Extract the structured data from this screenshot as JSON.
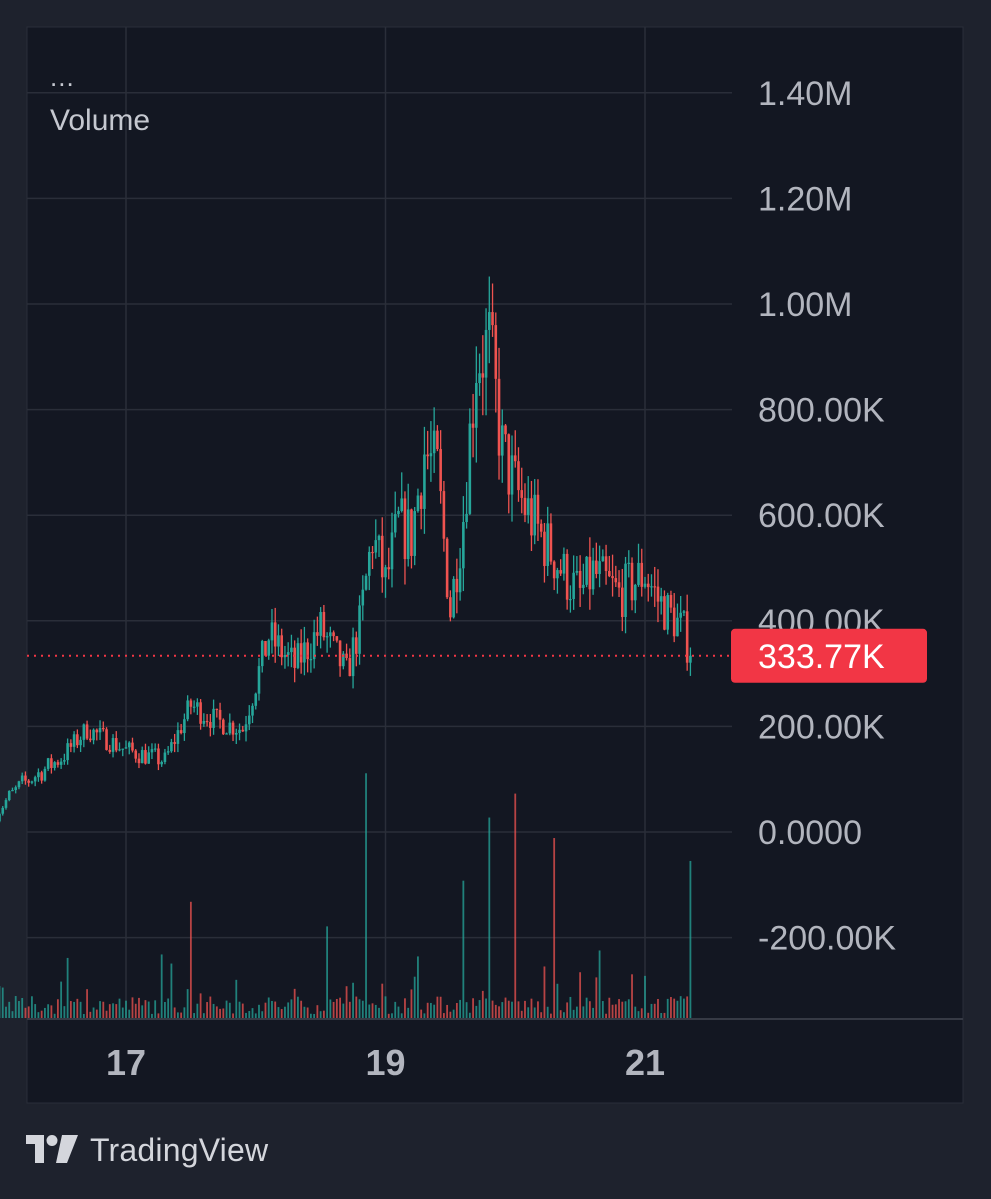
{
  "chart_data": {
    "type": "candlestick",
    "indicator_menu": "...",
    "indicator_label": "Volume",
    "y_axis": {
      "ticks": [
        1400000,
        1200000,
        1000000,
        800000,
        600000,
        400000,
        200000,
        0,
        -200000
      ],
      "tick_labels": [
        "1.40M",
        "1.20M",
        "1.00M",
        "800.00K",
        "600.00K",
        "400.00K",
        "200.00K",
        "0.0000",
        "-200.00K"
      ],
      "range": [
        -340000,
        1480000
      ]
    },
    "x_axis": {
      "tick_labels": [
        "17",
        "19",
        "21"
      ],
      "tick_day": [
        17,
        19,
        21
      ],
      "range_days": [
        16.0,
        22.33
      ]
    },
    "last_price": 333770,
    "last_price_label": "333.77K",
    "price_path_days": [
      16.0,
      16.2,
      16.5,
      16.7,
      17.0,
      17.3,
      17.5,
      17.7,
      17.9,
      18.1,
      18.3,
      18.5,
      18.7,
      18.8,
      18.9,
      19.0,
      19.1,
      19.2,
      19.3,
      19.4,
      19.5,
      19.6,
      19.7,
      19.8,
      19.9,
      20.0,
      20.2,
      20.4,
      20.5,
      20.6,
      20.8,
      21.0,
      21.1,
      21.2,
      21.3,
      21.35
    ],
    "price_path_values": [
      40000,
      90000,
      140000,
      195000,
      155000,
      135000,
      240000,
      210000,
      195000,
      370000,
      315000,
      385000,
      300000,
      390000,
      560000,
      470000,
      580000,
      560000,
      720000,
      680000,
      420000,
      600000,
      900000,
      920000,
      720000,
      650000,
      560000,
      480000,
      450000,
      490000,
      450000,
      490000,
      440000,
      410000,
      380000,
      333770
    ],
    "candle_count": 215,
    "volume_spikes_days": [
      18.85,
      20.0,
      19.8,
      20.3,
      21.35,
      19.6,
      17.5,
      18.55,
      20.65
    ],
    "colors": {
      "up": "#26a69a",
      "down": "#ef5350",
      "last_price_badge": "#f23645",
      "background": "#131722",
      "grid": "#2a2e39",
      "axis_text": "#b2b5be",
      "frame": "#1e222d"
    }
  },
  "branding": {
    "logo_icon": "tradingview-logo-icon",
    "name": "TradingView"
  }
}
